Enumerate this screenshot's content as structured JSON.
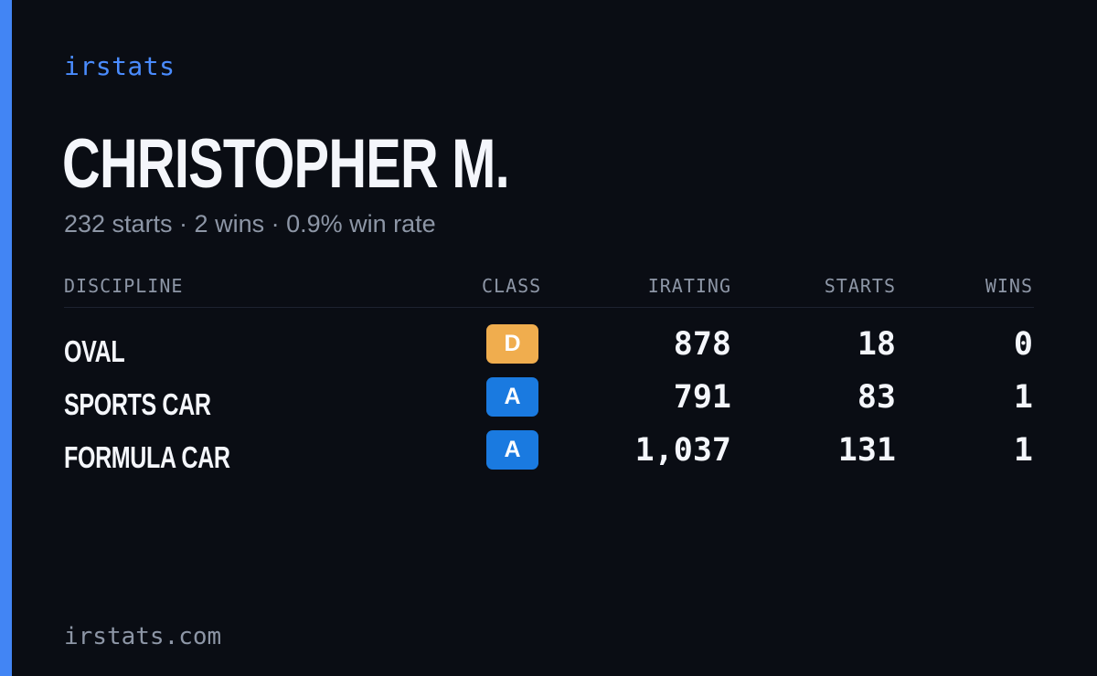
{
  "brand": "irstats",
  "player": {
    "name": "CHRISTOPHER M.",
    "summary": "232 starts · 2 wins · 0.9% win rate"
  },
  "table": {
    "headers": {
      "discipline": "DISCIPLINE",
      "class": "CLASS",
      "irating": "IRATING",
      "starts": "STARTS",
      "wins": "WINS"
    },
    "rows": [
      {
        "discipline": "OVAL",
        "class": "D",
        "irating": "878",
        "starts": "18",
        "wins": "0"
      },
      {
        "discipline": "SPORTS CAR",
        "class": "A",
        "irating": "791",
        "starts": "83",
        "wins": "1"
      },
      {
        "discipline": "FORMULA CAR",
        "class": "A",
        "irating": "1,037",
        "starts": "131",
        "wins": "1"
      }
    ]
  },
  "footer": {
    "url": "irstats.com"
  },
  "colors": {
    "background": "#0a0d14",
    "accent": "#4285f4",
    "class_d": "#f0ad4e",
    "class_a": "#1a7ae0"
  }
}
